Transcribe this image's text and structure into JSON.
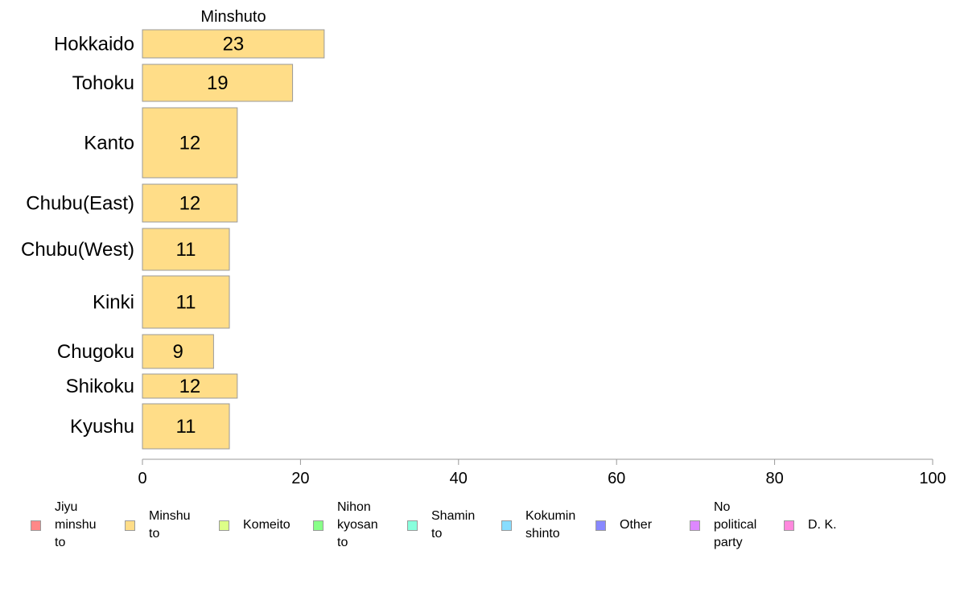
{
  "chart_data": {
    "type": "bar",
    "orientation": "horizontal",
    "title": "Minshuto",
    "categories": [
      "Hokkaido",
      "Tohoku",
      "Kanto",
      "Chubu(East)",
      "Chubu(West)",
      "Kinki",
      "Chugoku",
      "Shikoku",
      "Kyushu"
    ],
    "series": [
      {
        "name": "Minshuto",
        "values": [
          23,
          19,
          12,
          12,
          11,
          11,
          9,
          12,
          11
        ],
        "color": "#FFDD88"
      }
    ],
    "xlim": [
      0,
      100
    ],
    "xticks": [
      0,
      20,
      40,
      60,
      80,
      100
    ],
    "grid": false,
    "legend_placement": "bottom",
    "legend": [
      {
        "label": "Jiyu\nminshu\nto",
        "color": "#FF8888"
      },
      {
        "label": "Minshu\nto",
        "color": "#FFDD88"
      },
      {
        "label": "Komeito",
        "color": "#DDFF88"
      },
      {
        "label": "Nihon\nkyosan\nto",
        "color": "#88FF88"
      },
      {
        "label": "Shamin\nto",
        "color": "#88FFDD"
      },
      {
        "label": "Kokumin\nshinto",
        "color": "#88DDFF"
      },
      {
        "label": "Other",
        "color": "#8888FF"
      },
      {
        "label": "No\npolitical\nparty",
        "color": "#DD88FF"
      },
      {
        "label": "D. K.",
        "color": "#FF88DD"
      }
    ]
  }
}
